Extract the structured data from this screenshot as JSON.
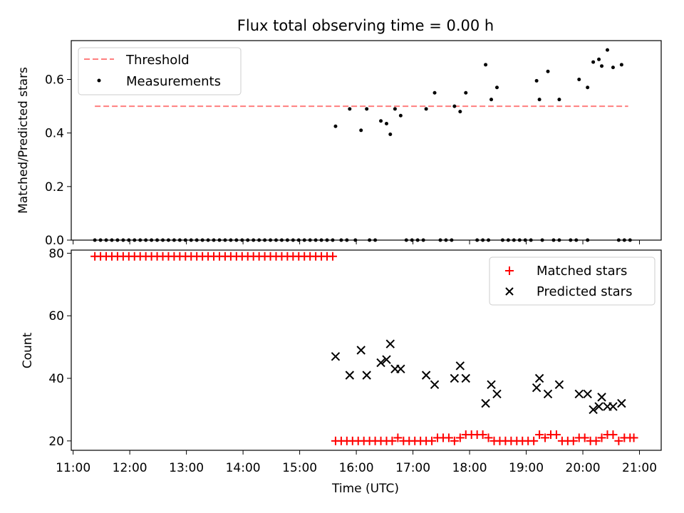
{
  "figure": {
    "title": "Flux total observing time = 0.00 h",
    "xlabel": "Time (UTC)"
  },
  "colors": {
    "threshold": "#ff7f7f",
    "measurements": "#000000",
    "matched": "#ff0000",
    "predicted": "#000000",
    "axes": "#000000",
    "background": "#ffffff"
  },
  "chart_data": [
    {
      "type": "scatter",
      "ylabel": "Matched/Predicted stars",
      "xlim": [
        "10:58",
        "21:23"
      ],
      "ylim": [
        0,
        0.745
      ],
      "yticks": [
        0.0,
        0.2,
        0.4,
        0.6
      ],
      "ytick_labels": [
        "0.0",
        "0.2",
        "0.4",
        "0.6"
      ],
      "legend_position": "top-left",
      "threshold": {
        "name": "Threshold",
        "value": 0.5,
        "x_range": [
          "11:23",
          "20:48"
        ]
      },
      "series": [
        {
          "name": "Measurements",
          "zero_points": [
            "11:23",
            "11:29",
            "11:35",
            "11:41",
            "11:47",
            "11:53",
            "11:59",
            "12:05",
            "12:11",
            "12:17",
            "12:23",
            "12:29",
            "12:35",
            "12:41",
            "12:47",
            "12:53",
            "12:59",
            "13:05",
            "13:11",
            "13:17",
            "13:23",
            "13:29",
            "13:35",
            "13:41",
            "13:47",
            "13:53",
            "13:59",
            "14:05",
            "14:11",
            "14:17",
            "14:23",
            "14:29",
            "14:35",
            "14:41",
            "14:47",
            "14:53",
            "14:59",
            "15:05",
            "15:11",
            "15:17",
            "15:23",
            "15:29",
            "15:35",
            "15:44",
            "15:50",
            "15:59",
            "16:14",
            "16:20",
            "16:53",
            "16:59",
            "17:05",
            "17:11",
            "17:29",
            "17:35",
            "17:41",
            "18:08",
            "18:14",
            "18:20",
            "18:35",
            "18:41",
            "18:47",
            "18:53",
            "18:59",
            "19:05",
            "19:17",
            "19:29",
            "19:35",
            "19:47",
            "19:53",
            "20:05",
            "20:38",
            "20:44",
            "20:50"
          ],
          "points": [
            {
              "x": "15:38",
              "y": 0.425
            },
            {
              "x": "15:53",
              "y": 0.49
            },
            {
              "x": "16:05",
              "y": 0.41
            },
            {
              "x": "16:11",
              "y": 0.49
            },
            {
              "x": "16:26",
              "y": 0.445
            },
            {
              "x": "16:32",
              "y": 0.435
            },
            {
              "x": "16:36",
              "y": 0.395
            },
            {
              "x": "16:41",
              "y": 0.49
            },
            {
              "x": "16:47",
              "y": 0.465
            },
            {
              "x": "17:14",
              "y": 0.49
            },
            {
              "x": "17:23",
              "y": 0.55
            },
            {
              "x": "17:44",
              "y": 0.5
            },
            {
              "x": "17:50",
              "y": 0.48
            },
            {
              "x": "17:56",
              "y": 0.55
            },
            {
              "x": "18:17",
              "y": 0.655
            },
            {
              "x": "18:23",
              "y": 0.525
            },
            {
              "x": "18:29",
              "y": 0.57
            },
            {
              "x": "19:11",
              "y": 0.595
            },
            {
              "x": "19:14",
              "y": 0.525
            },
            {
              "x": "19:23",
              "y": 0.63
            },
            {
              "x": "19:35",
              "y": 0.525
            },
            {
              "x": "19:56",
              "y": 0.6
            },
            {
              "x": "20:05",
              "y": 0.57
            },
            {
              "x": "20:11",
              "y": 0.665
            },
            {
              "x": "20:17",
              "y": 0.675
            },
            {
              "x": "20:20",
              "y": 0.65
            },
            {
              "x": "20:26",
              "y": 0.71
            },
            {
              "x": "20:32",
              "y": 0.645
            },
            {
              "x": "20:41",
              "y": 0.655
            }
          ]
        }
      ]
    },
    {
      "type": "scatter",
      "ylabel": "Count",
      "xlim": [
        "10:58",
        "21:23"
      ],
      "ylim": [
        17,
        81
      ],
      "yticks": [
        20,
        40,
        60,
        80
      ],
      "ytick_labels": [
        "20",
        "40",
        "60",
        "80"
      ],
      "xticks": [
        "11:00",
        "12:00",
        "13:00",
        "14:00",
        "15:00",
        "16:00",
        "17:00",
        "18:00",
        "19:00",
        "20:00",
        "21:00"
      ],
      "legend_position": "top-right",
      "series": [
        {
          "name": "Matched stars",
          "marker": "plus",
          "points": [
            {
              "x": "11:23",
              "y": 79
            },
            {
              "x": "11:29",
              "y": 79
            },
            {
              "x": "11:35",
              "y": 79
            },
            {
              "x": "11:41",
              "y": 79
            },
            {
              "x": "11:47",
              "y": 79
            },
            {
              "x": "11:53",
              "y": 79
            },
            {
              "x": "11:59",
              "y": 79
            },
            {
              "x": "12:05",
              "y": 79
            },
            {
              "x": "12:11",
              "y": 79
            },
            {
              "x": "12:17",
              "y": 79
            },
            {
              "x": "12:23",
              "y": 79
            },
            {
              "x": "12:29",
              "y": 79
            },
            {
              "x": "12:35",
              "y": 79
            },
            {
              "x": "12:41",
              "y": 79
            },
            {
              "x": "12:47",
              "y": 79
            },
            {
              "x": "12:53",
              "y": 79
            },
            {
              "x": "12:59",
              "y": 79
            },
            {
              "x": "13:05",
              "y": 79
            },
            {
              "x": "13:11",
              "y": 79
            },
            {
              "x": "13:17",
              "y": 79
            },
            {
              "x": "13:23",
              "y": 79
            },
            {
              "x": "13:29",
              "y": 79
            },
            {
              "x": "13:35",
              "y": 79
            },
            {
              "x": "13:41",
              "y": 79
            },
            {
              "x": "13:47",
              "y": 79
            },
            {
              "x": "13:53",
              "y": 79
            },
            {
              "x": "13:59",
              "y": 79
            },
            {
              "x": "14:05",
              "y": 79
            },
            {
              "x": "14:11",
              "y": 79
            },
            {
              "x": "14:17",
              "y": 79
            },
            {
              "x": "14:23",
              "y": 79
            },
            {
              "x": "14:29",
              "y": 79
            },
            {
              "x": "14:35",
              "y": 79
            },
            {
              "x": "14:41",
              "y": 79
            },
            {
              "x": "14:47",
              "y": 79
            },
            {
              "x": "14:53",
              "y": 79
            },
            {
              "x": "14:59",
              "y": 79
            },
            {
              "x": "15:05",
              "y": 79
            },
            {
              "x": "15:11",
              "y": 79
            },
            {
              "x": "15:17",
              "y": 79
            },
            {
              "x": "15:23",
              "y": 79
            },
            {
              "x": "15:29",
              "y": 79
            },
            {
              "x": "15:35",
              "y": 79
            },
            {
              "x": "15:38",
              "y": 20
            },
            {
              "x": "15:44",
              "y": 20
            },
            {
              "x": "15:50",
              "y": 20
            },
            {
              "x": "15:56",
              "y": 20
            },
            {
              "x": "16:02",
              "y": 20
            },
            {
              "x": "16:08",
              "y": 20
            },
            {
              "x": "16:14",
              "y": 20
            },
            {
              "x": "16:20",
              "y": 20
            },
            {
              "x": "16:26",
              "y": 20
            },
            {
              "x": "16:32",
              "y": 20
            },
            {
              "x": "16:38",
              "y": 20
            },
            {
              "x": "16:44",
              "y": 21
            },
            {
              "x": "16:50",
              "y": 20
            },
            {
              "x": "16:56",
              "y": 20
            },
            {
              "x": "17:02",
              "y": 20
            },
            {
              "x": "17:08",
              "y": 20
            },
            {
              "x": "17:14",
              "y": 20
            },
            {
              "x": "17:20",
              "y": 20
            },
            {
              "x": "17:26",
              "y": 21
            },
            {
              "x": "17:32",
              "y": 21
            },
            {
              "x": "17:38",
              "y": 21
            },
            {
              "x": "17:44",
              "y": 20
            },
            {
              "x": "17:50",
              "y": 21
            },
            {
              "x": "17:56",
              "y": 22
            },
            {
              "x": "18:02",
              "y": 22
            },
            {
              "x": "18:08",
              "y": 22
            },
            {
              "x": "18:14",
              "y": 22
            },
            {
              "x": "18:20",
              "y": 21
            },
            {
              "x": "18:26",
              "y": 20
            },
            {
              "x": "18:32",
              "y": 20
            },
            {
              "x": "18:38",
              "y": 20
            },
            {
              "x": "18:44",
              "y": 20
            },
            {
              "x": "18:50",
              "y": 20
            },
            {
              "x": "18:56",
              "y": 20
            },
            {
              "x": "19:02",
              "y": 20
            },
            {
              "x": "19:08",
              "y": 20
            },
            {
              "x": "19:14",
              "y": 22
            },
            {
              "x": "19:20",
              "y": 21
            },
            {
              "x": "19:26",
              "y": 22
            },
            {
              "x": "19:32",
              "y": 22
            },
            {
              "x": "19:38",
              "y": 20
            },
            {
              "x": "19:44",
              "y": 20
            },
            {
              "x": "19:50",
              "y": 20
            },
            {
              "x": "19:56",
              "y": 21
            },
            {
              "x": "20:02",
              "y": 21
            },
            {
              "x": "20:08",
              "y": 20
            },
            {
              "x": "20:14",
              "y": 20
            },
            {
              "x": "20:20",
              "y": 21
            },
            {
              "x": "20:26",
              "y": 22
            },
            {
              "x": "20:32",
              "y": 22
            },
            {
              "x": "20:38",
              "y": 20
            },
            {
              "x": "20:44",
              "y": 21
            },
            {
              "x": "20:50",
              "y": 21
            },
            {
              "x": "20:54",
              "y": 21
            }
          ]
        },
        {
          "name": "Predicted stars",
          "marker": "x",
          "points": [
            {
              "x": "15:38",
              "y": 47
            },
            {
              "x": "15:53",
              "y": 41
            },
            {
              "x": "16:05",
              "y": 49
            },
            {
              "x": "16:11",
              "y": 41
            },
            {
              "x": "16:26",
              "y": 45
            },
            {
              "x": "16:32",
              "y": 46
            },
            {
              "x": "16:36",
              "y": 51
            },
            {
              "x": "16:41",
              "y": 43
            },
            {
              "x": "16:47",
              "y": 43
            },
            {
              "x": "17:14",
              "y": 41
            },
            {
              "x": "17:23",
              "y": 38
            },
            {
              "x": "17:44",
              "y": 40
            },
            {
              "x": "17:50",
              "y": 44
            },
            {
              "x": "17:56",
              "y": 40
            },
            {
              "x": "18:17",
              "y": 32
            },
            {
              "x": "18:23",
              "y": 38
            },
            {
              "x": "18:29",
              "y": 35
            },
            {
              "x": "19:11",
              "y": 37
            },
            {
              "x": "19:14",
              "y": 40
            },
            {
              "x": "19:23",
              "y": 35
            },
            {
              "x": "19:35",
              "y": 38
            },
            {
              "x": "19:56",
              "y": 35
            },
            {
              "x": "20:05",
              "y": 35
            },
            {
              "x": "20:11",
              "y": 30
            },
            {
              "x": "20:17",
              "y": 31
            },
            {
              "x": "20:20",
              "y": 34
            },
            {
              "x": "20:26",
              "y": 31
            },
            {
              "x": "20:32",
              "y": 31
            },
            {
              "x": "20:41",
              "y": 32
            }
          ]
        }
      ]
    }
  ]
}
